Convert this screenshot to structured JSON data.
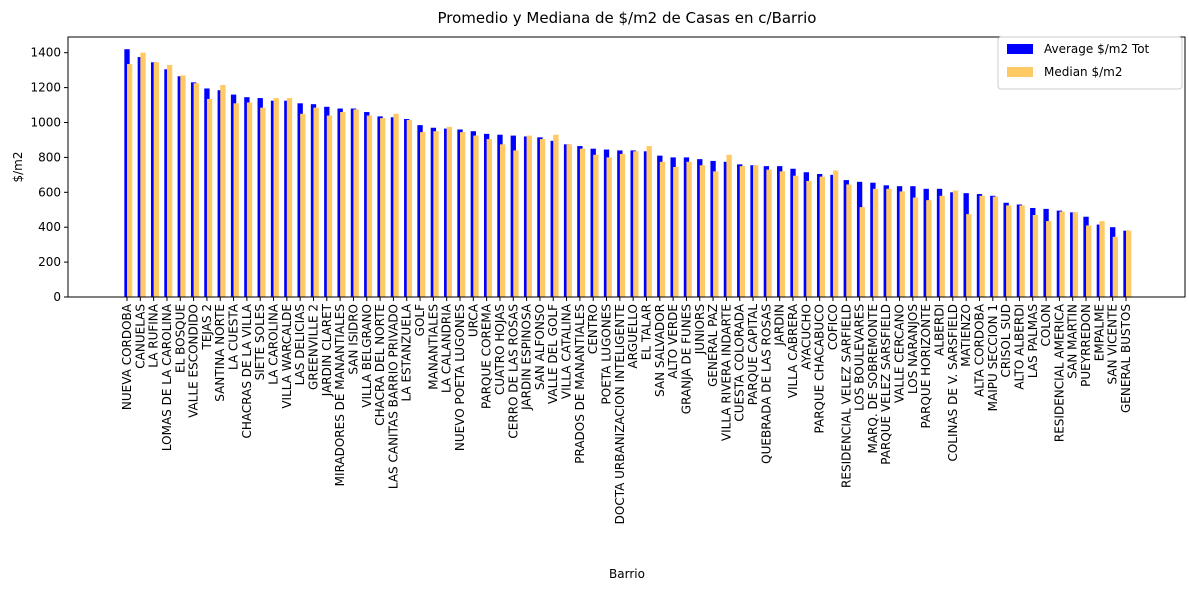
{
  "chart_data": {
    "type": "bar",
    "title": "Promedio y Mediana de $/m2 de Casas en c/Barrio",
    "xlabel": "Barrio",
    "ylabel": "$/m2",
    "ylim": [
      0,
      1490
    ],
    "yticks": [
      0,
      200,
      400,
      600,
      800,
      1000,
      1200,
      1400
    ],
    "legend_position": "top-right",
    "grid": false,
    "categories": [
      "NUEVA CORDOBA",
      "CANUELAS",
      "LA RUFINA",
      "LOMAS DE LA CAROLINA",
      "EL BOSQUE",
      "VALLE ESCONDIDO",
      "TEJAS 2",
      "SANTINA NORTE",
      "LA CUESTA",
      "CHACRAS DE LA VILLA",
      "SIETE SOLES",
      "LA CAROLINA",
      "VILLA WARCALDE",
      "LAS DELICIAS",
      "GREENVILLE 2",
      "JARDIN CLARET",
      "MIRADORES DE MANANTIALES",
      "SAN ISIDRO",
      "VILLA BELGRANO",
      "CHACRA DEL NORTE",
      "LAS CANITAS BARRIO PRIVADO",
      "LA ESTANZUELA",
      "GOLF",
      "MANANTIALES",
      "LA CALANDRIA",
      "NUEVO POETA LUGONES",
      "URCA",
      "PARQUE COREMA",
      "CUATRO HOJAS",
      "CERRO DE LAS ROSAS",
      "JARDIN ESPINOSA",
      "SAN ALFONSO",
      "VALLE DEL GOLF",
      "VILLA CATALINA",
      "PRADOS DE MANANTIALES",
      "CENTRO",
      "POETA LUGONES",
      "DOCTA URBANIZACION INTELIGENTE",
      "ARGUELLO",
      "EL TALAR",
      "SAN SALVADOR",
      "ALTO VERDE",
      "GRANJA DE FUNES",
      "JUNIORS",
      "GENERAL PAZ",
      "VILLA RIVERA INDARTE",
      "CUESTA COLORADA",
      "PARQUE CAPITAL",
      "QUEBRADA DE LAS ROSAS",
      "JARDIN",
      "VILLA CABRERA",
      "AYACUCHO",
      "PARQUE CHACABUCO",
      "COFICO",
      "RESIDENCIAL VELEZ SARFIELD",
      "LOS BOULEVARES",
      "MARQ. DE SOBREMONTE",
      "PARQUE VELEZ SARSFIELD",
      "VALLE CERCANO",
      "LOS NARANJOS",
      "PARQUE HORIZONTE",
      "ALBERDI",
      "COLINAS DE V. SARSFIELD",
      "MATIENZO",
      "ALTA CORDOBA",
      "MAIPU SECCION 1",
      "CRISOL SUD",
      "ALTO ALBERDI",
      "LAS PALMAS",
      "COLON",
      "RESIDENCIAL AMERICA",
      "SAN MARTIN",
      "PUEYRREDON",
      "EMPALME",
      "SAN VICENTE",
      "GENERAL BUSTOS"
    ],
    "series": [
      {
        "name": "Average $/m2 Tot",
        "color": "#0000ff",
        "values": [
          1420,
          1375,
          1345,
          1305,
          1265,
          1230,
          1195,
          1185,
          1160,
          1145,
          1140,
          1125,
          1125,
          1110,
          1105,
          1090,
          1080,
          1080,
          1060,
          1035,
          1030,
          1020,
          985,
          970,
          965,
          960,
          950,
          935,
          930,
          925,
          920,
          915,
          895,
          875,
          865,
          850,
          845,
          840,
          840,
          835,
          810,
          800,
          800,
          790,
          780,
          775,
          760,
          755,
          750,
          750,
          735,
          715,
          705,
          700,
          670,
          660,
          655,
          640,
          635,
          635,
          620,
          620,
          600,
          595,
          590,
          580,
          540,
          530,
          510,
          505,
          495,
          485,
          460,
          415,
          400,
          380
        ]
      },
      {
        "name": "Median $/m2",
        "color": "#ffc966",
        "values": [
          1335,
          1400,
          1345,
          1330,
          1270,
          1225,
          1135,
          1215,
          1110,
          1115,
          1085,
          1140,
          1140,
          1050,
          1085,
          1040,
          1060,
          1075,
          1040,
          1025,
          1050,
          1015,
          945,
          950,
          975,
          945,
          925,
          905,
          875,
          840,
          925,
          905,
          930,
          875,
          850,
          815,
          800,
          820,
          835,
          865,
          775,
          745,
          775,
          755,
          720,
          815,
          750,
          755,
          730,
          720,
          695,
          665,
          690,
          725,
          645,
          515,
          620,
          620,
          605,
          570,
          555,
          580,
          610,
          475,
          580,
          575,
          525,
          525,
          470,
          435,
          490,
          485,
          410,
          435,
          345,
          380
        ]
      }
    ]
  }
}
